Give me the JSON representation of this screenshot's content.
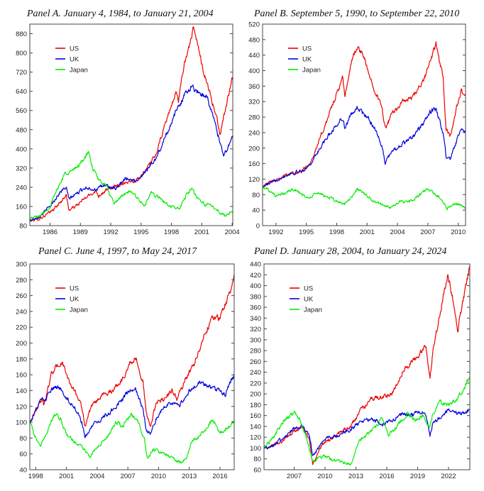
{
  "chart_data": [
    {
      "type": "line",
      "title": "Panel A. January 4, 1984, to January 21, 2004",
      "x_range": [
        1984.0,
        2004.06
      ],
      "ylim": [
        80,
        920
      ],
      "x_ticks": [
        1986,
        1989,
        1992,
        1995,
        1998,
        2001,
        2004
      ],
      "y_ticks": [
        80,
        160,
        240,
        320,
        400,
        480,
        560,
        640,
        720,
        800,
        880
      ],
      "legend": [
        "US",
        "UK",
        "Japan"
      ],
      "legend_position": "top-left",
      "series": [
        {
          "name": "US",
          "color": "#ee0000",
          "x": [
            1984.0,
            1985.0,
            1986.0,
            1987.0,
            1987.6,
            1987.85,
            1988.5,
            1989.5,
            1990.5,
            1990.8,
            1991.5,
            1992.5,
            1993.5,
            1994.5,
            1995.5,
            1996.5,
            1997.5,
            1998.5,
            1998.7,
            1999.2,
            1999.8,
            2000.2,
            2000.6,
            2001.2,
            2001.7,
            2002.5,
            2002.8,
            2003.3,
            2004.0
          ],
          "values": [
            100,
            110,
            135,
            175,
            210,
            145,
            160,
            195,
            225,
            205,
            225,
            245,
            262,
            270,
            310,
            380,
            520,
            640,
            600,
            740,
            840,
            900,
            830,
            720,
            650,
            520,
            460,
            560,
            690
          ]
        },
        {
          "name": "UK",
          "color": "#0000dd",
          "x": [
            1984.0,
            1985.0,
            1986.0,
            1987.0,
            1987.6,
            1987.85,
            1988.5,
            1989.5,
            1990.5,
            1991.5,
            1992.5,
            1993.5,
            1994.5,
            1995.5,
            1996.5,
            1997.5,
            1998.5,
            1999.5,
            2000.0,
            2000.5,
            2001.5,
            2002.2,
            2002.6,
            2003.2,
            2003.5,
            2004.0
          ],
          "values": [
            100,
            120,
            160,
            220,
            240,
            190,
            210,
            240,
            230,
            250,
            230,
            280,
            265,
            310,
            360,
            460,
            560,
            640,
            660,
            640,
            620,
            520,
            460,
            370,
            400,
            450
          ]
        },
        {
          "name": "Japan",
          "color": "#00ee00",
          "x": [
            1984.0,
            1985.0,
            1986.0,
            1986.8,
            1987.5,
            1988.3,
            1989.0,
            1989.8,
            1990.2,
            1990.8,
            1991.5,
            1992.3,
            1993.0,
            1993.8,
            1994.5,
            1995.3,
            1996.0,
            1997.0,
            1997.8,
            1998.8,
            1999.5,
            2000.0,
            2000.5,
            2001.3,
            2002.0,
            2002.7,
            2003.3,
            2004.0
          ],
          "values": [
            110,
            120,
            160,
            240,
            300,
            310,
            340,
            385,
            320,
            270,
            250,
            170,
            200,
            220,
            205,
            160,
            215,
            190,
            160,
            150,
            210,
            235,
            200,
            170,
            160,
            140,
            120,
            140
          ]
        }
      ]
    },
    {
      "type": "line",
      "title": "Panel B. September 5, 1990, to September 22, 2010",
      "x_range": [
        1990.68,
        2010.72
      ],
      "ylim": [
        0,
        520
      ],
      "x_ticks": [
        1992,
        1995,
        1998,
        2001,
        2004,
        2007,
        2010
      ],
      "y_ticks": [
        0,
        40,
        80,
        120,
        160,
        200,
        240,
        280,
        320,
        360,
        400,
        440,
        480,
        520
      ],
      "legend": [
        "US",
        "UK",
        "Japan"
      ],
      "legend_position": "top-left",
      "series": [
        {
          "name": "US",
          "color": "#ee0000",
          "x": [
            1990.68,
            1991.5,
            1992.5,
            1993.5,
            1994.5,
            1995.3,
            1996.0,
            1997.0,
            1998.0,
            1998.6,
            1998.8,
            1999.5,
            2000.0,
            2000.6,
            2001.3,
            2001.8,
            2002.5,
            2002.8,
            2003.5,
            2004.5,
            2005.5,
            2006.5,
            2007.2,
            2007.8,
            2008.5,
            2008.8,
            2009.2,
            2009.8,
            2010.3,
            2010.72
          ],
          "values": [
            100,
            115,
            125,
            135,
            140,
            160,
            200,
            270,
            340,
            380,
            330,
            430,
            460,
            440,
            380,
            350,
            300,
            250,
            290,
            320,
            330,
            370,
            420,
            470,
            380,
            250,
            230,
            300,
            350,
            330
          ]
        },
        {
          "name": "UK",
          "color": "#0000dd",
          "x": [
            1990.68,
            1991.5,
            1992.5,
            1993.5,
            1994.5,
            1995.3,
            1996.0,
            1997.0,
            1998.0,
            1998.6,
            1998.8,
            1999.5,
            2000.0,
            2000.6,
            2001.3,
            2001.8,
            2002.5,
            2002.8,
            2003.5,
            2004.5,
            2005.5,
            2006.5,
            2007.2,
            2007.8,
            2008.5,
            2008.8,
            2009.2,
            2009.8,
            2010.3,
            2010.72
          ],
          "values": [
            100,
            110,
            125,
            135,
            140,
            155,
            185,
            225,
            260,
            280,
            250,
            290,
            305,
            290,
            270,
            250,
            200,
            160,
            195,
            210,
            230,
            260,
            295,
            300,
            240,
            180,
            170,
            215,
            250,
            240
          ]
        },
        {
          "name": "Japan",
          "color": "#00ee00",
          "x": [
            1990.68,
            1991.2,
            1992.0,
            1993.0,
            1993.8,
            1994.5,
            1995.3,
            1996.0,
            1997.0,
            1997.8,
            1998.8,
            1999.5,
            2000.0,
            2000.6,
            2001.5,
            2002.5,
            2003.2,
            2004.0,
            2005.0,
            2006.0,
            2007.0,
            2007.5,
            2008.3,
            2008.9,
            2009.5,
            2010.0,
            2010.72
          ],
          "values": [
            100,
            95,
            75,
            85,
            95,
            80,
            70,
            85,
            75,
            65,
            55,
            75,
            95,
            85,
            65,
            55,
            45,
            60,
            60,
            75,
            95,
            85,
            70,
            45,
            55,
            55,
            48
          ]
        }
      ]
    },
    {
      "type": "line",
      "title": "Panel C. June 4, 1997, to May 24, 2017",
      "x_range": [
        1997.42,
        2017.39
      ],
      "ylim": [
        40,
        300
      ],
      "x_ticks": [
        1998,
        2001,
        2004,
        2007,
        2010,
        2013,
        2016
      ],
      "y_ticks": [
        40,
        60,
        80,
        100,
        120,
        140,
        160,
        180,
        200,
        220,
        240,
        260,
        280,
        300
      ],
      "legend": [
        "US",
        "UK",
        "Japan"
      ],
      "legend_position": "top-left",
      "series": [
        {
          "name": "US",
          "color": "#ee0000",
          "x": [
            1997.42,
            1998.0,
            1998.6,
            1998.8,
            1999.5,
            2000.0,
            2000.6,
            2001.3,
            2001.8,
            2002.5,
            2002.8,
            2003.5,
            2004.5,
            2005.5,
            2006.5,
            2007.2,
            2007.8,
            2008.5,
            2008.8,
            2009.2,
            2009.8,
            2010.5,
            2011.3,
            2011.8,
            2012.5,
            2013.5,
            2014.5,
            2015.3,
            2016.0,
            2016.5,
            2017.0,
            2017.39
          ],
          "values": [
            100,
            115,
            130,
            120,
            160,
            170,
            175,
            150,
            140,
            120,
            95,
            120,
            135,
            140,
            155,
            175,
            180,
            150,
            110,
            95,
            125,
            130,
            140,
            130,
            150,
            175,
            210,
            235,
            230,
            250,
            265,
            285
          ]
        },
        {
          "name": "UK",
          "color": "#0000dd",
          "x": [
            1997.42,
            1998.0,
            1998.6,
            1998.8,
            1999.5,
            2000.0,
            2000.6,
            2001.3,
            2001.8,
            2002.5,
            2002.8,
            2003.5,
            2004.5,
            2005.5,
            2006.5,
            2007.2,
            2007.8,
            2008.5,
            2008.8,
            2009.2,
            2009.8,
            2010.5,
            2011.3,
            2012.0,
            2013.0,
            2014.0,
            2015.0,
            2016.0,
            2016.5,
            2017.0,
            2017.39
          ],
          "values": [
            100,
            115,
            130,
            125,
            140,
            145,
            140,
            125,
            120,
            100,
            80,
            95,
            105,
            115,
            130,
            140,
            140,
            115,
            90,
            85,
            105,
            120,
            125,
            120,
            140,
            150,
            145,
            140,
            135,
            150,
            160
          ]
        },
        {
          "name": "Japan",
          "color": "#00ee00",
          "x": [
            1997.42,
            1998.0,
            1998.5,
            1999.0,
            1999.8,
            2000.4,
            2001.0,
            2001.8,
            2002.5,
            2003.3,
            2004.0,
            2005.0,
            2005.8,
            2006.5,
            2007.3,
            2008.0,
            2008.6,
            2008.9,
            2009.5,
            2010.5,
            2011.3,
            2012.0,
            2012.7,
            2013.2,
            2013.8,
            2014.5,
            2015.3,
            2016.0,
            2016.8,
            2017.39
          ],
          "values": [
            100,
            80,
            70,
            85,
            110,
            105,
            85,
            75,
            70,
            55,
            70,
            80,
            100,
            95,
            110,
            100,
            80,
            55,
            65,
            62,
            55,
            50,
            52,
            75,
            80,
            90,
            105,
            85,
            95,
            100
          ]
        }
      ]
    },
    {
      "type": "line",
      "title": "Panel D. January 28, 2004, to January 24, 2024",
      "x_range": [
        2004.07,
        2024.07
      ],
      "ylim": [
        60,
        440
      ],
      "x_ticks": [
        2007,
        2010,
        2013,
        2016,
        2019,
        2022
      ],
      "y_ticks": [
        60,
        80,
        100,
        120,
        140,
        160,
        180,
        200,
        220,
        240,
        260,
        280,
        300,
        320,
        340,
        360,
        380,
        400,
        420,
        440
      ],
      "legend": [
        "US",
        "UK",
        "Japan"
      ],
      "legend_position": "top-left",
      "series": [
        {
          "name": "US",
          "color": "#ee0000",
          "x": [
            2004.07,
            2005.0,
            2006.0,
            2007.0,
            2007.8,
            2008.5,
            2008.8,
            2009.2,
            2009.8,
            2010.5,
            2011.5,
            2012.5,
            2013.5,
            2014.5,
            2015.5,
            2016.5,
            2017.5,
            2018.5,
            2019.0,
            2019.8,
            2020.2,
            2020.5,
            2021.0,
            2021.9,
            2022.5,
            2022.9,
            2023.5,
            2024.07
          ],
          "values": [
            100,
            105,
            115,
            130,
            140,
            110,
            70,
            85,
            110,
            115,
            130,
            140,
            170,
            190,
            195,
            200,
            240,
            260,
            270,
            290,
            230,
            280,
            330,
            420,
            370,
            320,
            380,
            435
          ]
        },
        {
          "name": "UK",
          "color": "#0000dd",
          "x": [
            2004.07,
            2005.0,
            2006.0,
            2007.0,
            2007.8,
            2008.5,
            2008.8,
            2009.2,
            2009.8,
            2010.5,
            2011.5,
            2012.5,
            2013.5,
            2014.5,
            2015.5,
            2016.5,
            2017.5,
            2018.5,
            2019.0,
            2019.8,
            2020.2,
            2020.5,
            2021.0,
            2021.9,
            2022.5,
            2022.9,
            2023.5,
            2024.07
          ],
          "values": [
            100,
            105,
            120,
            135,
            140,
            120,
            85,
            95,
            115,
            120,
            125,
            135,
            150,
            155,
            145,
            150,
            165,
            160,
            165,
            165,
            125,
            145,
            155,
            170,
            165,
            165,
            165,
            170
          ]
        },
        {
          "name": "Japan",
          "color": "#00ee00",
          "x": [
            2004.07,
            2005.0,
            2006.0,
            2007.0,
            2007.5,
            2008.0,
            2008.5,
            2008.8,
            2009.2,
            2009.8,
            2010.5,
            2011.5,
            2012.5,
            2013.3,
            2014.0,
            2015.0,
            2015.5,
            2016.2,
            2017.0,
            2018.0,
            2018.8,
            2019.5,
            2020.2,
            2020.5,
            2021.0,
            2022.0,
            2022.8,
            2023.3,
            2024.07
          ],
          "values": [
            100,
            120,
            150,
            165,
            155,
            130,
            95,
            75,
            80,
            85,
            80,
            75,
            70,
            115,
            125,
            140,
            155,
            125,
            140,
            165,
            150,
            160,
            140,
            165,
            185,
            180,
            190,
            205,
            230
          ]
        }
      ]
    }
  ]
}
